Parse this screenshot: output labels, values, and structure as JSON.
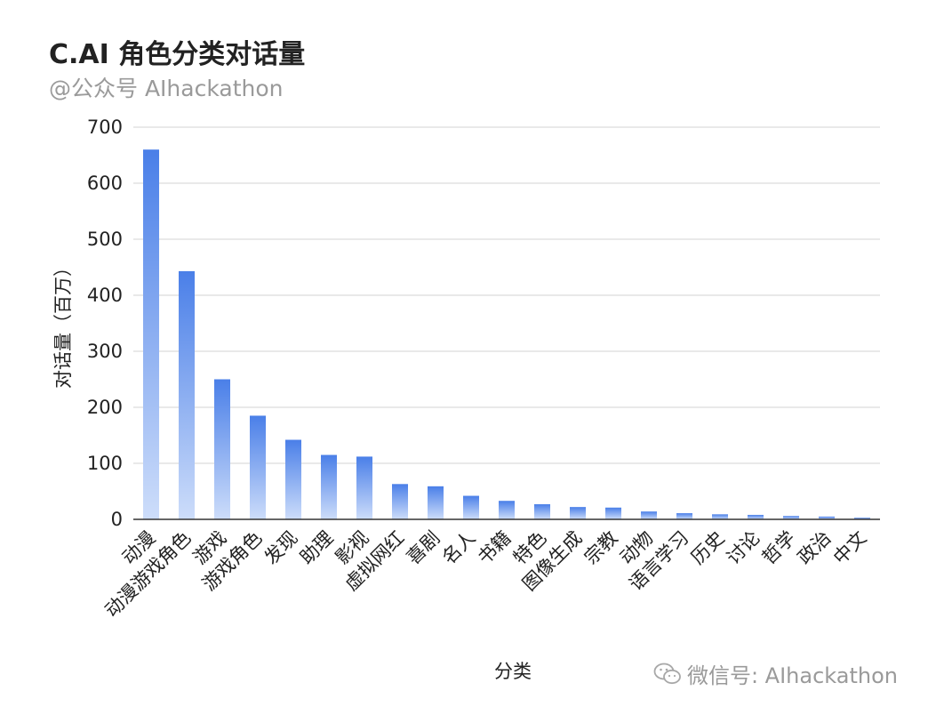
{
  "header": {
    "title": "C.AI 角色分类对话量",
    "subtitle": "@公众号  AIhackathon"
  },
  "watermark": {
    "text": "微信号: AIhackathon",
    "icon": "wechat-icon"
  },
  "colors": {
    "bar_top": "#4a7fe8",
    "bar_bottom": "#cdddfa",
    "grid": "#dcdcdc",
    "axis": "#333333"
  },
  "chart_data": {
    "type": "bar",
    "xlabel": "分类",
    "ylabel": "对话量（百万）",
    "ylim": [
      0,
      700
    ],
    "yticks": [
      0,
      100,
      200,
      300,
      400,
      500,
      600,
      700
    ],
    "grid": true,
    "categories": [
      "动漫",
      "动漫游戏角色",
      "游戏",
      "游戏角色",
      "发现",
      "助理",
      "影视",
      "虚拟网红",
      "喜剧",
      "名人",
      "书籍",
      "特色",
      "图像生成",
      "宗教",
      "动物",
      "语言学习",
      "历史",
      "讨论",
      "哲学",
      "政治",
      "中文"
    ],
    "values": [
      660,
      443,
      250,
      185,
      142,
      115,
      112,
      63,
      59,
      42,
      33,
      27,
      22,
      21,
      14,
      11,
      9,
      8,
      6,
      5,
      3
    ]
  }
}
